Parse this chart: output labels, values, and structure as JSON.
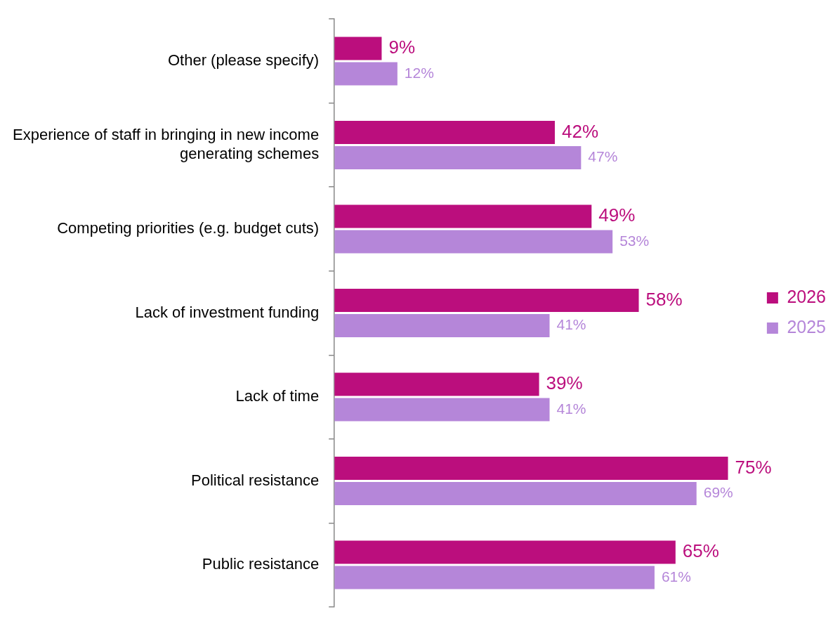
{
  "chart_data": {
    "type": "bar",
    "orientation": "horizontal",
    "categories": [
      "Other (please specify)",
      "Experience of staff in bringing in new income generating schemes",
      "Competing priorities (e.g. budget cuts)",
      "Lack of investment funding",
      "Lack of time",
      "Political resistance",
      "Public resistance"
    ],
    "series": [
      {
        "name": "2026",
        "color": "#bb0e7d",
        "values": [
          9,
          42,
          49,
          58,
          39,
          75,
          65
        ],
        "value_labels": [
          "9%",
          "42%",
          "49%",
          "58%",
          "39%",
          "75%",
          "65%"
        ]
      },
      {
        "name": "2025",
        "color": "#b586d9",
        "values": [
          12,
          47,
          53,
          41,
          41,
          69,
          61
        ],
        "value_labels": [
          "12%",
          "47%",
          "53%",
          "41%",
          "41%",
          "69%",
          "61%"
        ]
      }
    ],
    "legend": "right",
    "tick_labels": "y"
  }
}
